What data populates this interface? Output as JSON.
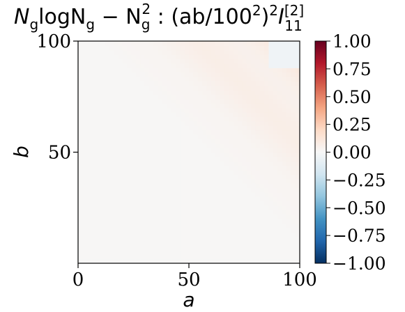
{
  "chart_data": {
    "type": "heatmap",
    "title": {
      "part1": "N",
      "part1_sub": "g",
      "part2": "logN",
      "part2_sub": "g",
      "part3": " − N",
      "part3_sub": "g",
      "part3_sup": "2",
      "part4": " :  (ab/100",
      "part4_sup": "2",
      "part5": ")",
      "part5_sup": "2",
      "part6": "I",
      "part6_sup": "[2]",
      "part6_sub": "11"
    },
    "xlabel": "a",
    "ylabel": "b",
    "xlim": [
      0,
      100
    ],
    "ylim": [
      0,
      100
    ],
    "x_ticks": [
      {
        "value": 0,
        "label": "0"
      },
      {
        "value": 50,
        "label": "50"
      },
      {
        "value": 100,
        "label": "100"
      }
    ],
    "y_ticks": [
      {
        "value": 50,
        "label": "50"
      },
      {
        "value": 100,
        "label": "100"
      }
    ],
    "colorbar": {
      "colormap": "RdBu_r",
      "vmin": -1.0,
      "vmax": 1.0,
      "ticks": [
        {
          "value": 1.0,
          "label": "1.00"
        },
        {
          "value": 0.75,
          "label": "0.75"
        },
        {
          "value": 0.5,
          "label": "0.50"
        },
        {
          "value": 0.25,
          "label": "0.25"
        },
        {
          "value": 0.0,
          "label": "0.00"
        },
        {
          "value": -0.25,
          "label": "−0.25"
        },
        {
          "value": -0.5,
          "label": "−0.50"
        },
        {
          "value": -0.75,
          "label": "−0.75"
        },
        {
          "value": -1.0,
          "label": "−1.00"
        }
      ],
      "colors": [
        "#053061",
        "#2166ac",
        "#4393c3",
        "#92c5de",
        "#d1e5f0",
        "#f7f7f7",
        "#fddbc7",
        "#f4a582",
        "#d6604d",
        "#b2182b",
        "#67001f"
      ]
    },
    "field_description_values": {
      "background": 0.01,
      "band_peak": 0.12,
      "corner_value": -0.04
    }
  }
}
